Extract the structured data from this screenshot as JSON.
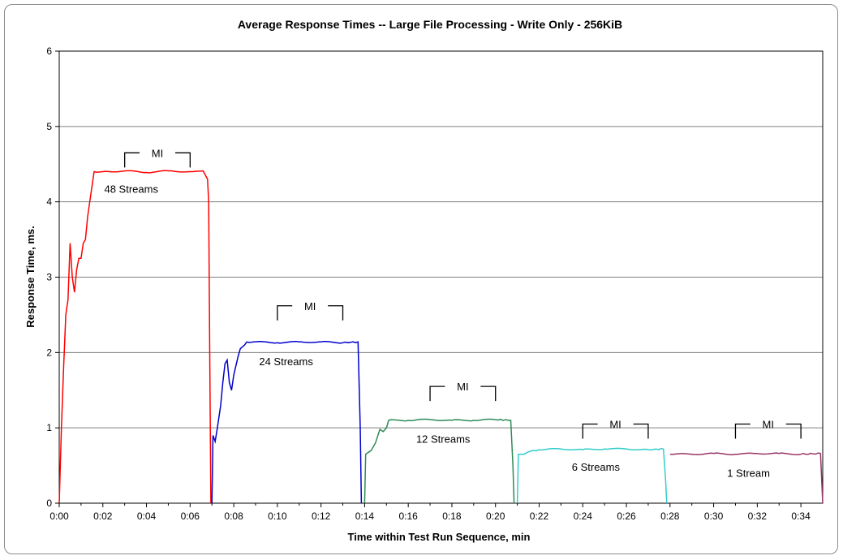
{
  "chart_data": {
    "type": "line",
    "title": "Average Response Times -- Large File Processing - Write Only - 256KiB",
    "xlabel": "Time within Test Run Sequence, min",
    "ylabel": "Response Time, ms.",
    "xlim": [
      0,
      35
    ],
    "ylim": [
      0,
      6
    ],
    "x_ticks": [
      "0:00",
      "0:02",
      "0:04",
      "0:06",
      "0:08",
      "0:10",
      "0:12",
      "0:14",
      "0:16",
      "0:18",
      "0:20",
      "0:22",
      "0:24",
      "0:26",
      "0:28",
      "0:30",
      "0:32",
      "0:34"
    ],
    "y_ticks": [
      "0",
      "1",
      "2",
      "3",
      "4",
      "5",
      "6"
    ],
    "grid": "horizontal",
    "series": [
      {
        "label": "48 Streams",
        "color": "#ff0000",
        "points": [
          [
            0,
            0
          ],
          [
            0.1,
            1.0
          ],
          [
            0.2,
            1.8
          ],
          [
            0.3,
            2.5
          ],
          [
            0.4,
            2.7
          ],
          [
            0.5,
            3.45
          ],
          [
            0.6,
            3.0
          ],
          [
            0.7,
            2.8
          ],
          [
            0.8,
            3.1
          ],
          [
            0.9,
            3.25
          ],
          [
            1.0,
            3.25
          ],
          [
            1.1,
            3.45
          ],
          [
            1.2,
            3.5
          ],
          [
            1.3,
            3.8
          ],
          [
            1.4,
            4.0
          ],
          [
            1.5,
            4.2
          ],
          [
            1.6,
            4.4
          ],
          [
            2.0,
            4.4
          ],
          [
            3.0,
            4.41
          ],
          [
            4.0,
            4.39
          ],
          [
            5.0,
            4.41
          ],
          [
            6.0,
            4.4
          ],
          [
            6.6,
            4.41
          ],
          [
            6.8,
            4.3
          ],
          [
            6.85,
            4.0
          ],
          [
            6.9,
            2.0
          ],
          [
            6.95,
            0
          ]
        ]
      },
      {
        "label": "24 Streams",
        "color": "#0000cc",
        "points": [
          [
            7.0,
            0
          ],
          [
            7.05,
            0.9
          ],
          [
            7.15,
            0.82
          ],
          [
            7.25,
            1.0
          ],
          [
            7.4,
            1.3
          ],
          [
            7.5,
            1.6
          ],
          [
            7.6,
            1.85
          ],
          [
            7.7,
            1.9
          ],
          [
            7.8,
            1.6
          ],
          [
            7.9,
            1.5
          ],
          [
            8.0,
            1.7
          ],
          [
            8.2,
            1.95
          ],
          [
            8.3,
            2.05
          ],
          [
            8.5,
            2.1
          ],
          [
            8.6,
            2.14
          ],
          [
            9.0,
            2.14
          ],
          [
            10.0,
            2.13
          ],
          [
            11.0,
            2.14
          ],
          [
            12.0,
            2.14
          ],
          [
            13.0,
            2.13
          ],
          [
            13.7,
            2.14
          ],
          [
            13.8,
            1.0
          ],
          [
            13.85,
            0
          ]
        ]
      },
      {
        "label": "12 Streams",
        "color": "#2e8b57",
        "points": [
          [
            14.0,
            0
          ],
          [
            14.05,
            0.65
          ],
          [
            14.3,
            0.7
          ],
          [
            14.5,
            0.8
          ],
          [
            14.7,
            0.98
          ],
          [
            14.85,
            0.95
          ],
          [
            15.0,
            1.0
          ],
          [
            15.1,
            1.1
          ],
          [
            16.0,
            1.1
          ],
          [
            17.0,
            1.11
          ],
          [
            18.0,
            1.1
          ],
          [
            19.0,
            1.1
          ],
          [
            20.0,
            1.11
          ],
          [
            20.7,
            1.1
          ],
          [
            20.8,
            0.5
          ],
          [
            20.85,
            0
          ]
        ]
      },
      {
        "label": "6 Streams",
        "color": "#33cccc",
        "points": [
          [
            21.0,
            0
          ],
          [
            21.05,
            0.65
          ],
          [
            21.3,
            0.65
          ],
          [
            21.5,
            0.68
          ],
          [
            21.7,
            0.7
          ],
          [
            22.0,
            0.71
          ],
          [
            23.0,
            0.72
          ],
          [
            24.0,
            0.71
          ],
          [
            25.0,
            0.72
          ],
          [
            26.0,
            0.72
          ],
          [
            27.0,
            0.71
          ],
          [
            27.7,
            0.72
          ],
          [
            27.8,
            0.3
          ],
          [
            27.85,
            0
          ]
        ]
      },
      {
        "label": "1 Stream",
        "color": "#993366",
        "points": [
          [
            28.0,
            0.65
          ],
          [
            29.0,
            0.65
          ],
          [
            30.0,
            0.66
          ],
          [
            31.0,
            0.65
          ],
          [
            32.0,
            0.66
          ],
          [
            33.0,
            0.66
          ],
          [
            34.0,
            0.65
          ],
          [
            34.9,
            0.66
          ],
          [
            35.0,
            0
          ]
        ]
      }
    ],
    "series_labels": [
      {
        "text": "48 Streams",
        "x": 3.3,
        "y": 4.12
      },
      {
        "text": "24 Streams",
        "x": 10.4,
        "y": 1.83
      },
      {
        "text": "12 Streams",
        "x": 17.6,
        "y": 0.8
      },
      {
        "text": "6 Streams",
        "x": 24.6,
        "y": 0.43
      },
      {
        "text": "1 Stream",
        "x": 31.6,
        "y": 0.35
      }
    ],
    "mi_markers": [
      {
        "text": "MI",
        "x_start": 3.0,
        "x_end": 6.0,
        "y": 4.65
      },
      {
        "text": "MI",
        "x_start": 10.0,
        "x_end": 13.0,
        "y": 2.62
      },
      {
        "text": "MI",
        "x_start": 17.0,
        "x_end": 20.0,
        "y": 1.55
      },
      {
        "text": "MI",
        "x_start": 24.0,
        "x_end": 27.0,
        "y": 1.05
      },
      {
        "text": "MI",
        "x_start": 31.0,
        "x_end": 34.0,
        "y": 1.05
      }
    ]
  }
}
